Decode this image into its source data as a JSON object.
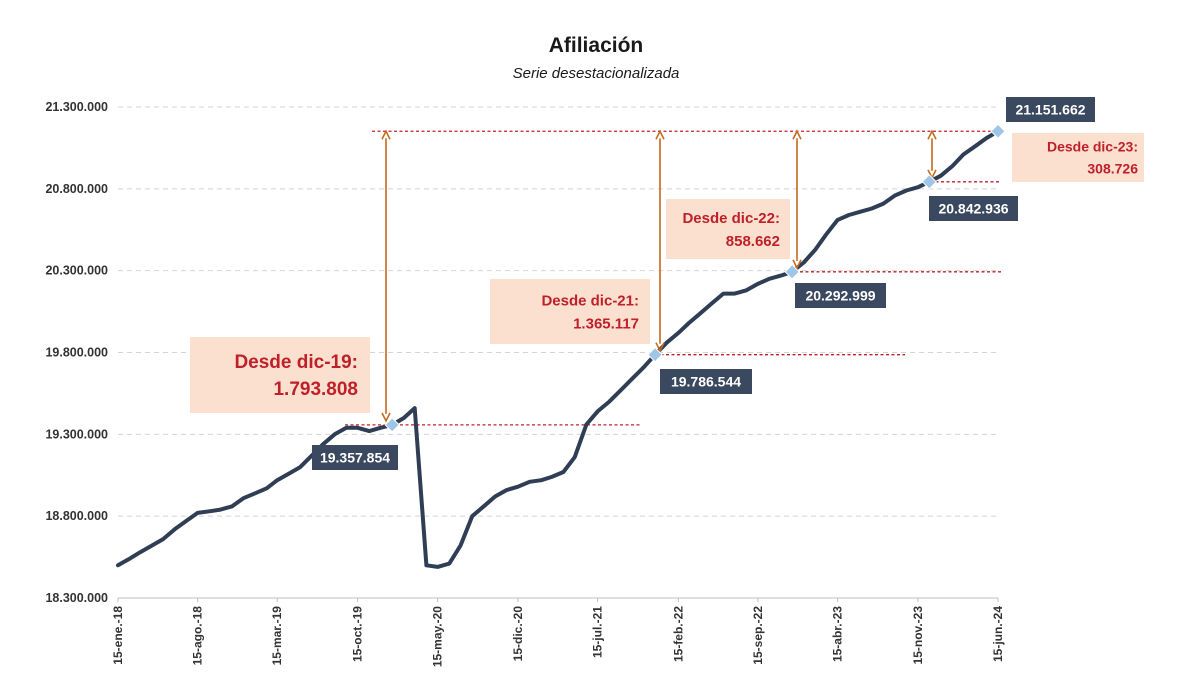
{
  "chart_data": {
    "type": "line",
    "title": "Afiliación",
    "subtitle": "Serie desestacionalizada",
    "xlabel": "",
    "ylabel": "",
    "ylim": [
      18300000,
      21300000
    ],
    "yticks": [
      18300000,
      18800000,
      19300000,
      19800000,
      20300000,
      20800000,
      21300000
    ],
    "ytick_labels": [
      "18.300.000",
      "18.800.000",
      "19.300.000",
      "19.800.000",
      "20.300.000",
      "20.800.000",
      "21.300.000"
    ],
    "xtick_labels": [
      "15-ene.-18",
      "15-ago.-18",
      "15-mar.-19",
      "15-oct.-19",
      "15-may.-20",
      "15-dic.-20",
      "15-jul.-21",
      "15-feb.-22",
      "15-sep.-22",
      "15-abr.-23",
      "15-nov.-23",
      "15-jun.-24"
    ],
    "grid": true,
    "series": [
      {
        "color": "#2f3e55",
        "points": [
          [
            "2018-01-15",
            18500000
          ],
          [
            "2018-02-15",
            18540000
          ],
          [
            "2018-03-15",
            18580000
          ],
          [
            "2018-04-15",
            18620000
          ],
          [
            "2018-05-15",
            18660000
          ],
          [
            "2018-06-15",
            18720000
          ],
          [
            "2018-07-15",
            18770000
          ],
          [
            "2018-08-15",
            18820000
          ],
          [
            "2018-09-15",
            18830000
          ],
          [
            "2018-10-15",
            18840000
          ],
          [
            "2018-11-15",
            18860000
          ],
          [
            "2018-12-15",
            18910000
          ],
          [
            "2019-01-15",
            18940000
          ],
          [
            "2019-02-15",
            18970000
          ],
          [
            "2019-03-15",
            19020000
          ],
          [
            "2019-04-15",
            19060000
          ],
          [
            "2019-05-15",
            19100000
          ],
          [
            "2019-06-15",
            19170000
          ],
          [
            "2019-07-15",
            19240000
          ],
          [
            "2019-08-15",
            19300000
          ],
          [
            "2019-09-15",
            19340000
          ],
          [
            "2019-10-15",
            19340000
          ],
          [
            "2019-11-15",
            19320000
          ],
          [
            "2019-12-15",
            19340000
          ],
          [
            "2020-01-15",
            19357854
          ],
          [
            "2020-02-15",
            19400000
          ],
          [
            "2020-03-15",
            19460000
          ],
          [
            "2020-04-15",
            18500000
          ],
          [
            "2020-05-15",
            18490000
          ],
          [
            "2020-06-15",
            18510000
          ],
          [
            "2020-07-15",
            18620000
          ],
          [
            "2020-08-15",
            18800000
          ],
          [
            "2020-09-15",
            18860000
          ],
          [
            "2020-10-15",
            18920000
          ],
          [
            "2020-11-15",
            18960000
          ],
          [
            "2020-12-15",
            18980000
          ],
          [
            "2021-01-15",
            19010000
          ],
          [
            "2021-02-15",
            19020000
          ],
          [
            "2021-03-15",
            19040000
          ],
          [
            "2021-04-15",
            19070000
          ],
          [
            "2021-05-15",
            19160000
          ],
          [
            "2021-06-15",
            19360000
          ],
          [
            "2021-07-15",
            19440000
          ],
          [
            "2021-08-15",
            19500000
          ],
          [
            "2021-09-15",
            19570000
          ],
          [
            "2021-10-15",
            19640000
          ],
          [
            "2021-11-15",
            19710000
          ],
          [
            "2021-12-15",
            19786544
          ],
          [
            "2022-01-15",
            19860000
          ],
          [
            "2022-02-15",
            19920000
          ],
          [
            "2022-03-15",
            19980000
          ],
          [
            "2022-04-15",
            20040000
          ],
          [
            "2022-05-15",
            20100000
          ],
          [
            "2022-06-15",
            20160000
          ],
          [
            "2022-07-15",
            20160000
          ],
          [
            "2022-08-15",
            20180000
          ],
          [
            "2022-09-15",
            20220000
          ],
          [
            "2022-10-15",
            20250000
          ],
          [
            "2022-11-15",
            20270000
          ],
          [
            "2022-12-15",
            20292999
          ],
          [
            "2023-01-15",
            20350000
          ],
          [
            "2023-02-15",
            20430000
          ],
          [
            "2023-03-15",
            20520000
          ],
          [
            "2023-04-15",
            20610000
          ],
          [
            "2023-05-15",
            20640000
          ],
          [
            "2023-06-15",
            20660000
          ],
          [
            "2023-07-15",
            20680000
          ],
          [
            "2023-08-15",
            20710000
          ],
          [
            "2023-09-15",
            20760000
          ],
          [
            "2023-10-15",
            20790000
          ],
          [
            "2023-11-15",
            20810000
          ],
          [
            "2023-12-15",
            20842936
          ],
          [
            "2024-01-15",
            20880000
          ],
          [
            "2024-02-15",
            20940000
          ],
          [
            "2024-03-15",
            21010000
          ],
          [
            "2024-04-15",
            21060000
          ],
          [
            "2024-05-15",
            21110000
          ],
          [
            "2024-06-15",
            21151662
          ]
        ]
      }
    ],
    "highlighted_points": [
      {
        "x": "2020-01-15",
        "y": 19357854,
        "label": "19.357.854"
      },
      {
        "x": "2021-12-15",
        "y": 19786544,
        "label": "19.786.544"
      },
      {
        "x": "2022-12-15",
        "y": 20292999,
        "label": "20.292.999"
      },
      {
        "x": "2023-12-15",
        "y": 20842936,
        "label": "20.842.936"
      },
      {
        "x": "2024-06-15",
        "y": 21151662,
        "label": "21.151.662"
      }
    ],
    "annotations": [
      {
        "from_x": "2020-01-15",
        "from_y": 19357854,
        "text": "Desde dic-19:",
        "value": "1.793.808"
      },
      {
        "from_x": "2021-12-15",
        "from_y": 19786544,
        "text": "Desde dic-21:",
        "value": "1.365.117"
      },
      {
        "from_x": "2022-12-15",
        "from_y": 20292999,
        "text": "Desde dic-22:",
        "value": "858.662"
      },
      {
        "from_x": "2023-12-15",
        "from_y": 20842936,
        "text": "Desde dic-23:",
        "value": "308.726"
      }
    ],
    "colors": {
      "line": "#2f3e55",
      "marker": "#9fc5e8",
      "value_box": "#3b4960",
      "annotation_box": "#fbe0d0",
      "annotation_text": "#c0202a",
      "arrow": "#c46b1d",
      "reference_line": "#c0202a"
    }
  }
}
